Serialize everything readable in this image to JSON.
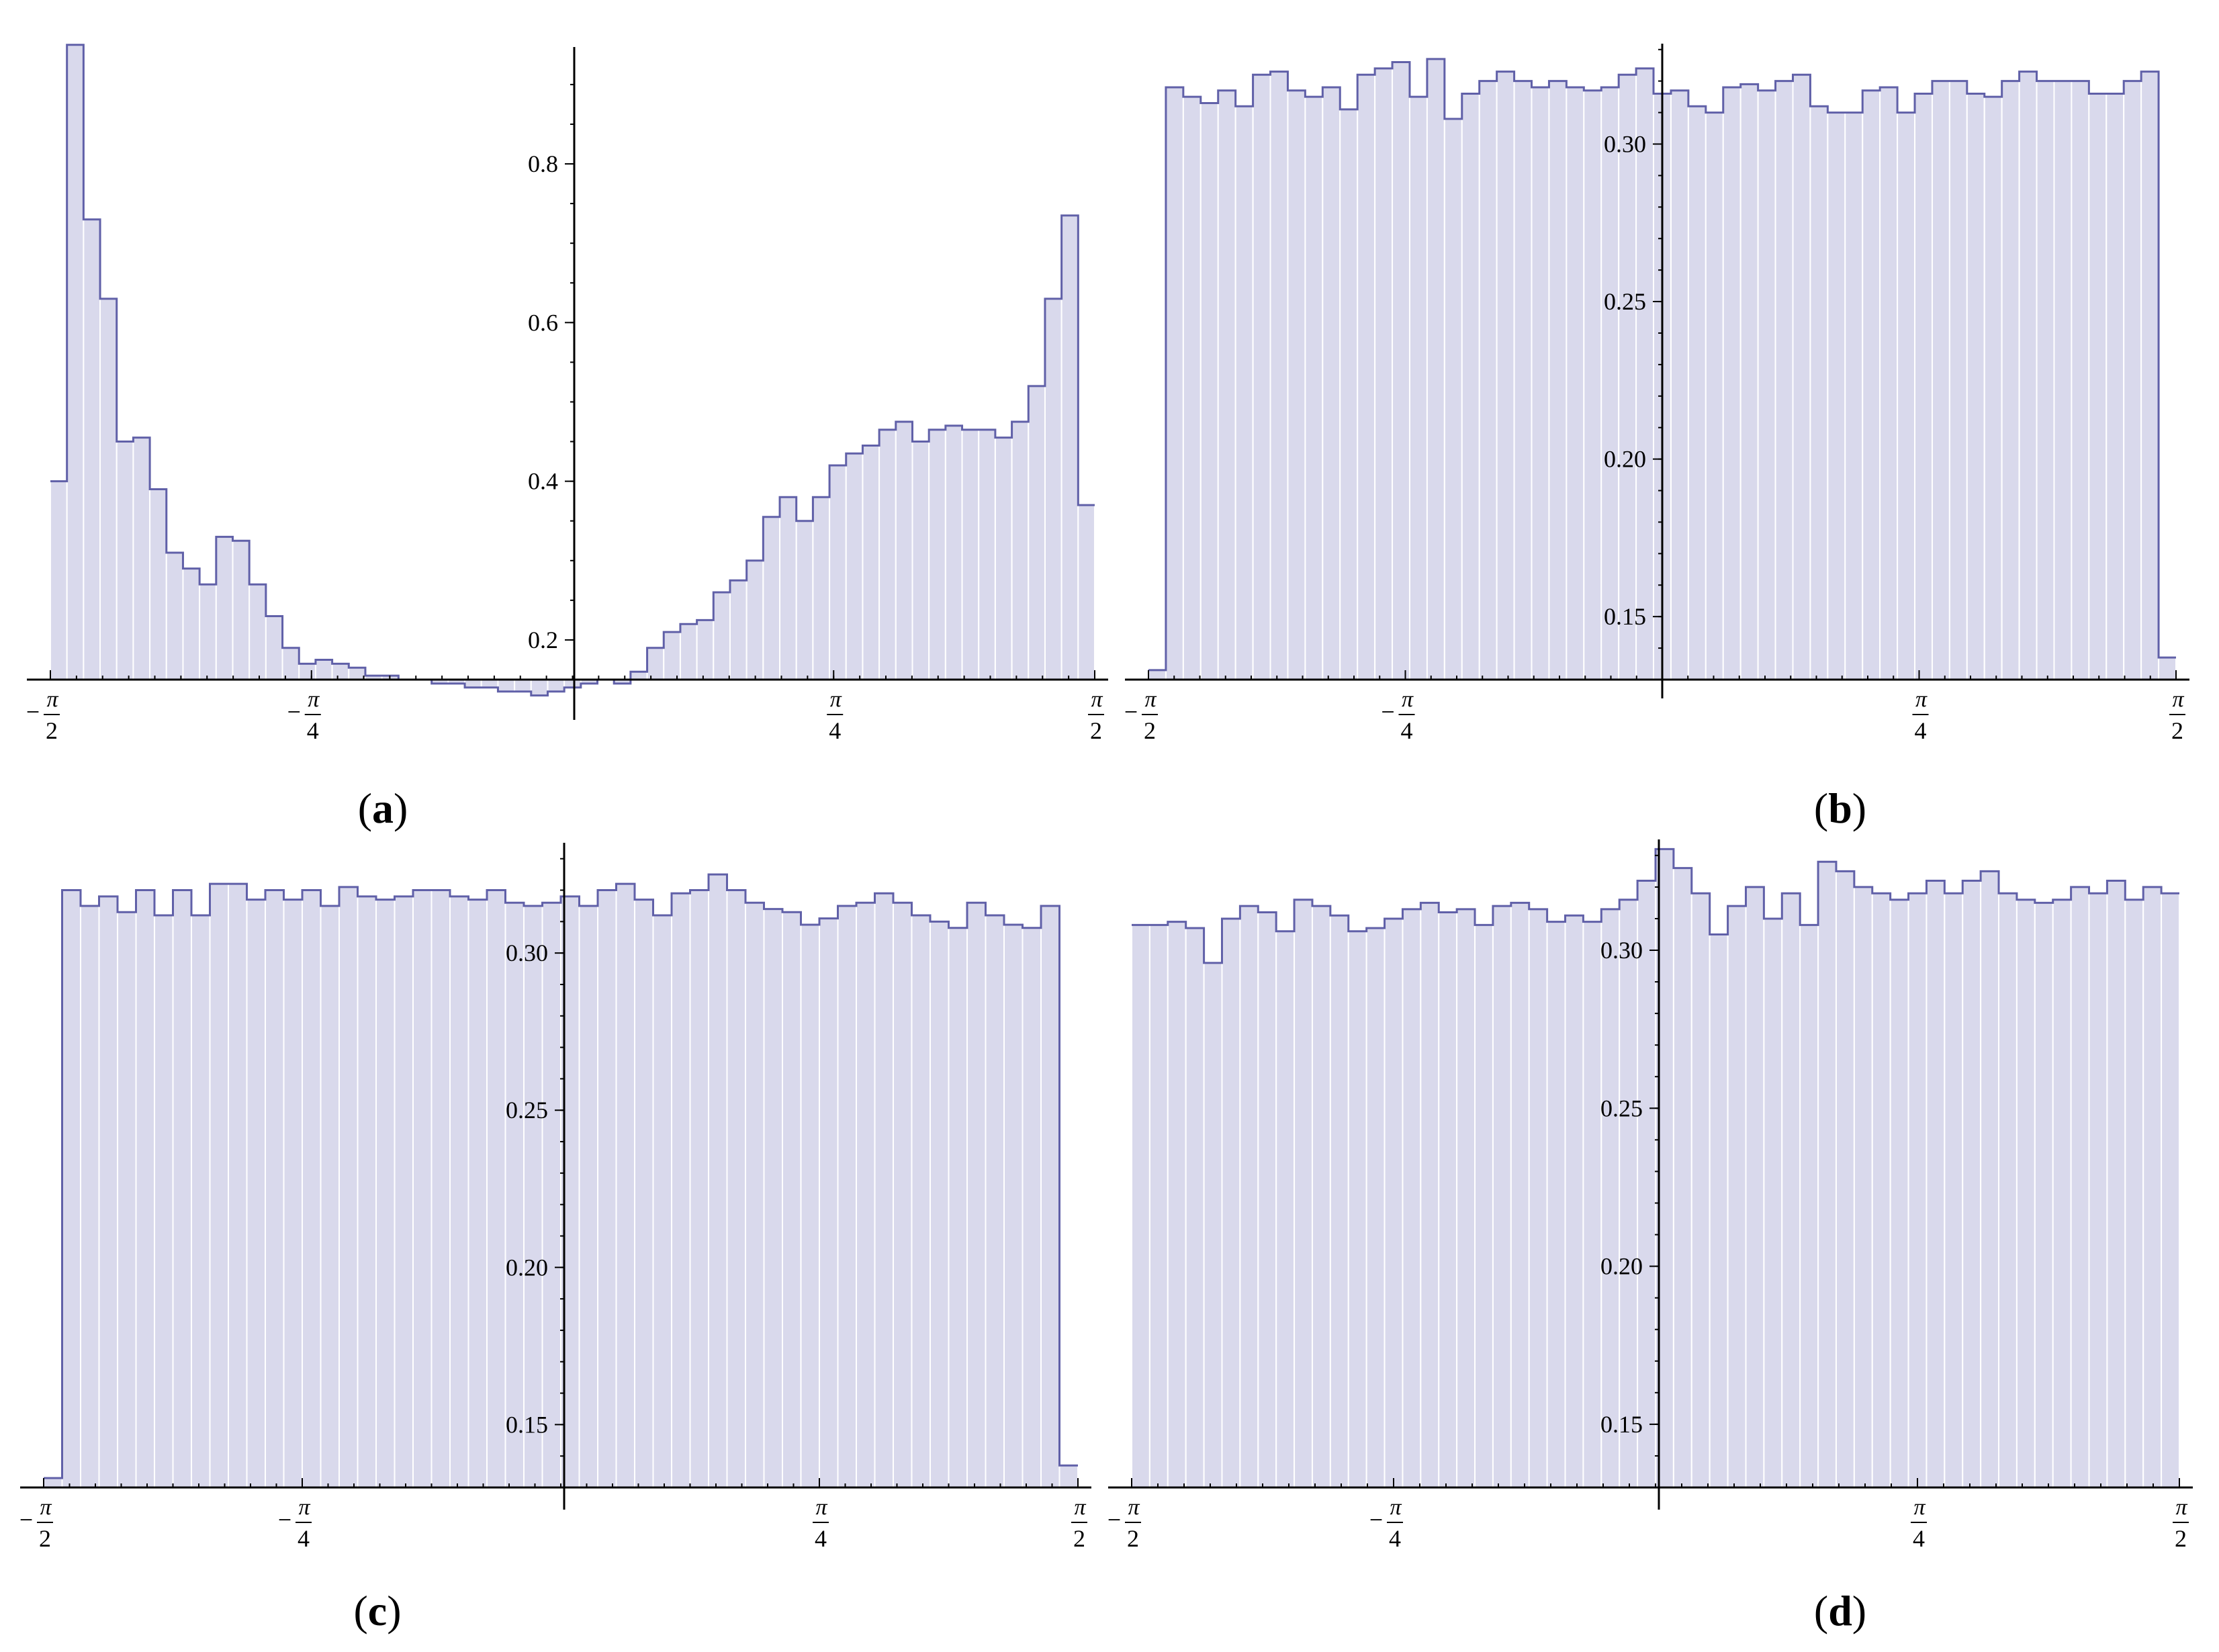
{
  "chart_data": [
    {
      "panel": "a",
      "type": "bar",
      "xlim": [
        -1.5708,
        1.5708
      ],
      "ylim": [
        0.15,
        0.96
      ],
      "baseline": 0.15,
      "x_ticks": [
        {
          "value": -1.5708,
          "sign": "−",
          "num": "π",
          "den": "2"
        },
        {
          "value": -0.7854,
          "sign": "−",
          "num": "π",
          "den": "4"
        },
        {
          "value": 0.7854,
          "sign": "",
          "num": "π",
          "den": "4"
        },
        {
          "value": 1.5708,
          "sign": "",
          "num": "π",
          "den": "2"
        }
      ],
      "y_ticks": [
        "0.2",
        "0.4",
        "0.6",
        "0.8"
      ],
      "y_tick_values": [
        0.2,
        0.4,
        0.6,
        0.8
      ],
      "values": [
        0.4,
        0.95,
        0.73,
        0.63,
        0.45,
        0.455,
        0.39,
        0.31,
        0.29,
        0.27,
        0.33,
        0.325,
        0.27,
        0.23,
        0.19,
        0.17,
        0.175,
        0.17,
        0.165,
        0.155,
        0.155,
        0.15,
        0.15,
        0.145,
        0.145,
        0.14,
        0.14,
        0.135,
        0.135,
        0.13,
        0.135,
        0.14,
        0.145,
        0.15,
        0.145,
        0.16,
        0.19,
        0.21,
        0.22,
        0.225,
        0.26,
        0.275,
        0.3,
        0.355,
        0.38,
        0.35,
        0.38,
        0.42,
        0.435,
        0.445,
        0.465,
        0.475,
        0.45,
        0.465,
        0.47,
        0.465,
        0.465,
        0.455,
        0.475,
        0.52,
        0.63,
        0.735,
        0.37
      ]
    },
    {
      "panel": "b",
      "type": "bar",
      "xlim": [
        -1.5708,
        1.5708
      ],
      "ylim": [
        0.13,
        0.334
      ],
      "baseline": 0.13,
      "x_ticks": [
        {
          "value": -1.5708,
          "sign": "−",
          "num": "π",
          "den": "2"
        },
        {
          "value": -0.7854,
          "sign": "−",
          "num": "π",
          "den": "4"
        },
        {
          "value": 0.7854,
          "sign": "",
          "num": "π",
          "den": "4"
        },
        {
          "value": 1.5708,
          "sign": "",
          "num": "π",
          "den": "2"
        }
      ],
      "y_ticks": [
        "0.15",
        "0.20",
        "0.25",
        "0.30"
      ],
      "y_tick_values": [
        0.15,
        0.2,
        0.25,
        0.3
      ],
      "values": [
        0.133,
        0.318,
        0.315,
        0.313,
        0.317,
        0.312,
        0.322,
        0.323,
        0.317,
        0.315,
        0.318,
        0.311,
        0.322,
        0.324,
        0.326,
        0.315,
        0.327,
        0.308,
        0.316,
        0.32,
        0.323,
        0.32,
        0.318,
        0.32,
        0.318,
        0.317,
        0.318,
        0.322,
        0.324,
        0.316,
        0.317,
        0.312,
        0.31,
        0.318,
        0.319,
        0.317,
        0.32,
        0.322,
        0.312,
        0.31,
        0.31,
        0.317,
        0.318,
        0.31,
        0.316,
        0.32,
        0.32,
        0.316,
        0.315,
        0.32,
        0.323,
        0.32,
        0.32,
        0.32,
        0.316,
        0.316,
        0.32,
        0.323,
        0.137
      ]
    },
    {
      "panel": "c",
      "type": "bar",
      "xlim": [
        -1.5708,
        1.5708
      ],
      "ylim": [
        0.13,
        0.334
      ],
      "baseline": 0.13,
      "x_ticks": [
        {
          "value": -1.5708,
          "sign": "−",
          "num": "π",
          "den": "2"
        },
        {
          "value": -0.7854,
          "sign": "−",
          "num": "π",
          "den": "4"
        },
        {
          "value": 0.7854,
          "sign": "",
          "num": "π",
          "den": "4"
        },
        {
          "value": 1.5708,
          "sign": "",
          "num": "π",
          "den": "2"
        }
      ],
      "y_ticks": [
        "0.15",
        "0.20",
        "0.25",
        "0.30"
      ],
      "y_tick_values": [
        0.15,
        0.2,
        0.25,
        0.3
      ],
      "values": [
        0.133,
        0.32,
        0.315,
        0.318,
        0.313,
        0.32,
        0.312,
        0.32,
        0.312,
        0.322,
        0.322,
        0.317,
        0.32,
        0.317,
        0.32,
        0.315,
        0.321,
        0.318,
        0.317,
        0.318,
        0.32,
        0.32,
        0.318,
        0.317,
        0.32,
        0.316,
        0.315,
        0.316,
        0.318,
        0.315,
        0.32,
        0.322,
        0.317,
        0.312,
        0.319,
        0.32,
        0.325,
        0.32,
        0.316,
        0.314,
        0.313,
        0.309,
        0.311,
        0.315,
        0.316,
        0.319,
        0.316,
        0.312,
        0.31,
        0.308,
        0.316,
        0.312,
        0.309,
        0.308,
        0.315,
        0.137
      ]
    },
    {
      "panel": "d",
      "type": "bar",
      "xlim": [
        -1.5708,
        1.5708
      ],
      "ylim": [
        0.13,
        0.334
      ],
      "baseline": 0.13,
      "x_ticks": [
        {
          "value": -1.5708,
          "sign": "−",
          "num": "π",
          "den": "2"
        },
        {
          "value": -0.7854,
          "sign": "−",
          "num": "π",
          "den": "4"
        },
        {
          "value": 0.7854,
          "sign": "",
          "num": "π",
          "den": "4"
        },
        {
          "value": 1.5708,
          "sign": "",
          "num": "π",
          "den": "2"
        }
      ],
      "y_ticks": [
        "0.15",
        "0.20",
        "0.25",
        "0.30"
      ],
      "y_tick_values": [
        0.15,
        0.2,
        0.25,
        0.3
      ],
      "values": [
        0.308,
        0.308,
        0.309,
        0.307,
        0.296,
        0.31,
        0.314,
        0.312,
        0.306,
        0.316,
        0.314,
        0.311,
        0.306,
        0.307,
        0.31,
        0.313,
        0.315,
        0.312,
        0.313,
        0.308,
        0.314,
        0.315,
        0.313,
        0.309,
        0.311,
        0.309,
        0.313,
        0.316,
        0.322,
        0.332,
        0.326,
        0.318,
        0.305,
        0.314,
        0.32,
        0.31,
        0.318,
        0.308,
        0.328,
        0.325,
        0.32,
        0.318,
        0.316,
        0.318,
        0.322,
        0.318,
        0.322,
        0.325,
        0.318,
        0.316,
        0.315,
        0.316,
        0.32,
        0.318,
        0.322,
        0.316,
        0.32,
        0.318
      ]
    }
  ],
  "panel_labels": {
    "a": {
      "open": "(",
      "letter": "a",
      "close": ")"
    },
    "b": {
      "open": "(",
      "letter": "b",
      "close": ")"
    },
    "c": {
      "open": "(",
      "letter": "c",
      "close": ")"
    },
    "d": {
      "open": "(",
      "letter": "d",
      "close": ")"
    }
  },
  "colors": {
    "fill": "#d9d9ec",
    "edge": "#6060a8",
    "gap": "#ffffff"
  }
}
